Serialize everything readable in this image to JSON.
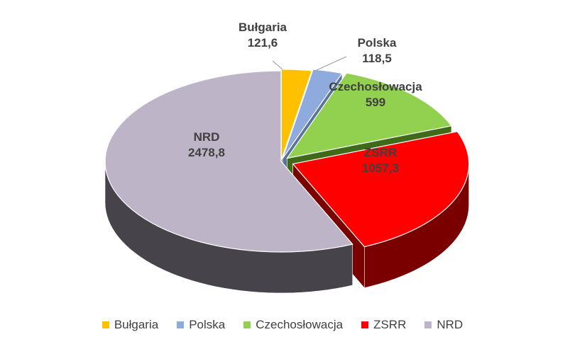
{
  "chart_data": {
    "type": "pie",
    "style": "3d-exploded",
    "categories": [
      "Bułgaria",
      "Polska",
      "Czechosłowacja",
      "ZSRR",
      "NRD"
    ],
    "values": [
      121.6,
      118.5,
      599,
      1057.3,
      2478.8
    ],
    "value_labels": [
      "121,6",
      "118,5",
      "599",
      "1057,3",
      "2478,8"
    ],
    "colors": [
      "#FFC000",
      "#8FAADC",
      "#92D050",
      "#FF0000",
      "#BEB4C8"
    ],
    "side_colors": [
      "#9C7A08",
      "#5A739A",
      "#3E6A1A",
      "#7A0000",
      "#46434A"
    ],
    "label_colors": [
      "#404040",
      "#404040",
      "#404040",
      "#404040",
      "#404040"
    ],
    "legend_position": "bottom",
    "title": ""
  }
}
